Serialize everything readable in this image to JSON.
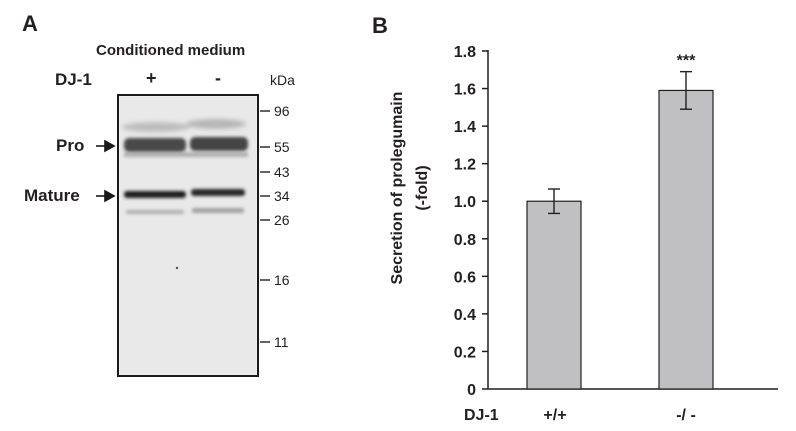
{
  "panel_a": {
    "letter": "A",
    "header": "Conditioned medium",
    "row_label": "DJ-1",
    "lanes": [
      "+",
      "-"
    ],
    "unit": "kDa",
    "markers": [
      "96",
      "55",
      "43",
      "34",
      "26",
      "16",
      "11"
    ],
    "band_labels": [
      "Pro",
      "Mature"
    ]
  },
  "panel_b": {
    "letter": "B",
    "genotype_label": "DJ-1"
  },
  "chart_data": {
    "type": "bar",
    "categories": [
      "+/+",
      "-/ -"
    ],
    "values": [
      1.0,
      1.59
    ],
    "errors": [
      0.065,
      0.1
    ],
    "annotations": [
      "",
      "***"
    ],
    "title": "",
    "xlabel": "",
    "ylabel": "Secretion of prolegumain (-fold)",
    "ylabel_lines": [
      "Secretion of prolegumain",
      "(-fold)"
    ],
    "ylim": [
      0,
      1.8
    ],
    "yticks": [
      0,
      0.2,
      0.4,
      0.6,
      0.8,
      1.0,
      1.2,
      1.4,
      1.6,
      1.8
    ],
    "ytick_labels": [
      "0",
      "0.2",
      "0.4",
      "0.6",
      "0.8",
      "1.0",
      "1.2",
      "1.4",
      "1.6",
      "1.8"
    ],
    "grid": false,
    "legend": "none",
    "bar_color": "#c0c0c2"
  }
}
